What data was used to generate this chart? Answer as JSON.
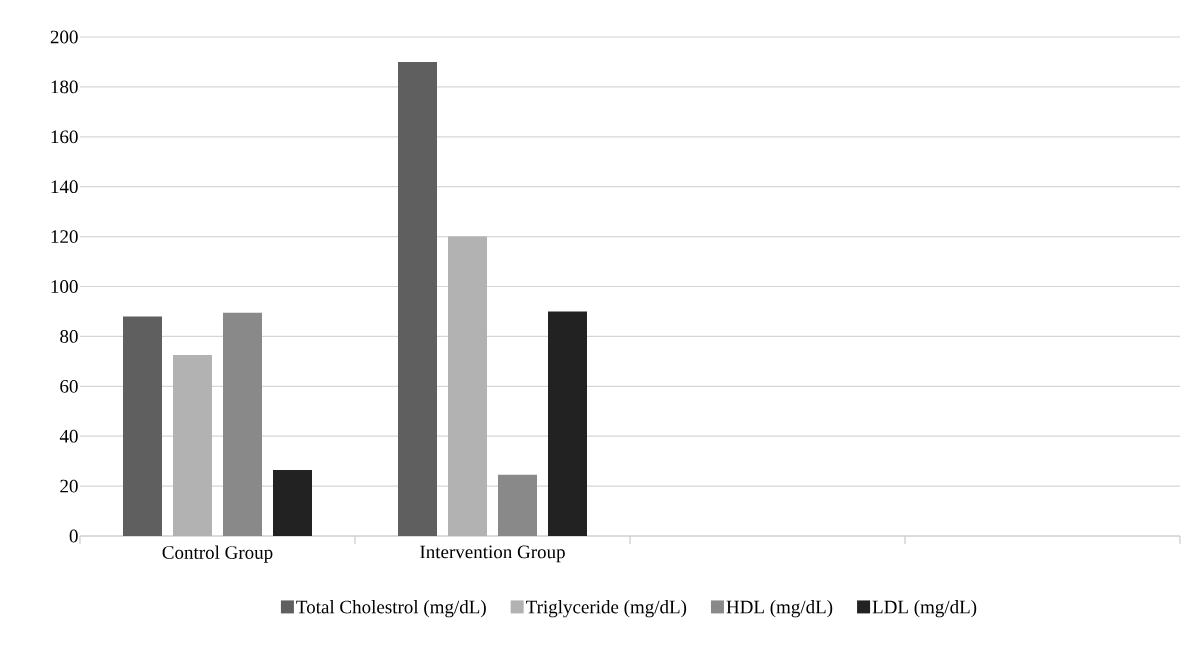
{
  "chart_data": {
    "type": "bar",
    "categories": [
      "Control Group",
      "Intervention Group",
      null,
      null
    ],
    "series": [
      {
        "name": "Total Cholestrol (mg/dL)",
        "color": "#5f5f5f",
        "values": [
          88,
          190,
          null,
          null
        ]
      },
      {
        "name": "Triglyceride (mg/dL)",
        "color": "#b2b2b2",
        "values": [
          72.5,
          120,
          null,
          null
        ]
      },
      {
        "name": "HDL (mg/dL)",
        "color": "#898989",
        "values": [
          89.5,
          24.5,
          null,
          null
        ]
      },
      {
        "name": "LDL (mg/dL)",
        "color": "#222222",
        "values": [
          26.5,
          90,
          null,
          null
        ]
      }
    ],
    "ylim": [
      0,
      200
    ],
    "yticks": [
      0,
      20,
      40,
      60,
      80,
      100,
      120,
      140,
      160,
      180,
      200
    ],
    "grid": "y",
    "legend": "bottom"
  }
}
